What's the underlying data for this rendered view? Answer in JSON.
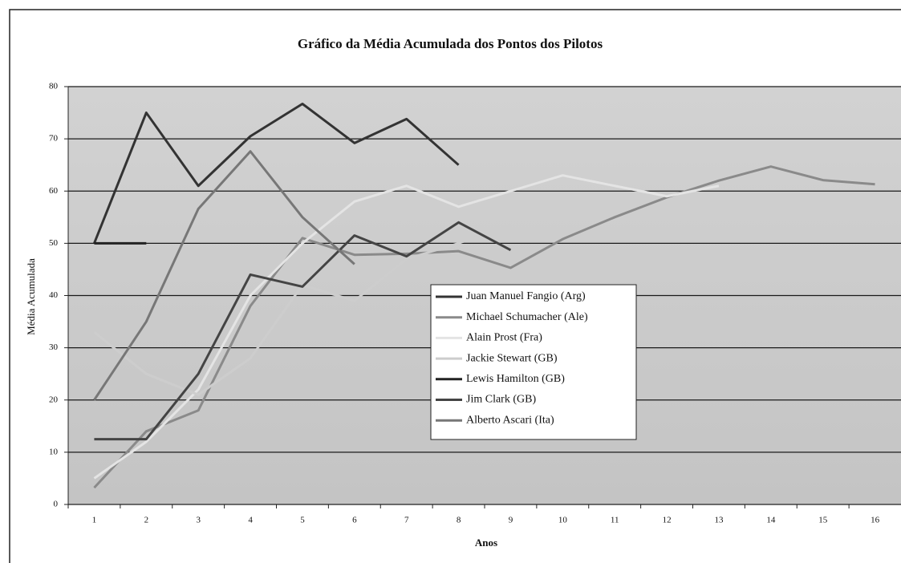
{
  "chart_data": {
    "type": "line",
    "title": "Gráfico da Média Acumulada dos Pontos dos Pilotos",
    "x_label": "Anos",
    "y_label": "Média Acumulada",
    "categories": [
      "1",
      "2",
      "3",
      "4",
      "5",
      "6",
      "7",
      "8",
      "9",
      "10",
      "11",
      "12",
      "13",
      "14",
      "15",
      "16"
    ],
    "ylim": [
      0,
      80
    ],
    "yticks": [
      0,
      10,
      20,
      30,
      40,
      50,
      60,
      70,
      80
    ],
    "grid": true,
    "series": [
      {
        "name": "Juan Manuel Fangio (Arg)",
        "color": "#333333",
        "values": [
          50,
          75,
          61,
          70.5,
          76.7,
          69.2,
          73.8,
          65,
          null,
          null,
          null,
          null,
          null,
          null,
          null,
          null
        ]
      },
      {
        "name": "Michael Schumacher (Ale)",
        "color": "#8a8a8a",
        "values": [
          3.2,
          14,
          18,
          38,
          51,
          47.8,
          48,
          48.5,
          45.3,
          50.8,
          55,
          58.8,
          62,
          64.7,
          62.1,
          61.3
        ]
      },
      {
        "name": "Alain Prost (Fra)",
        "color": "#e4e4e4",
        "values": [
          5,
          12,
          22,
          40,
          50,
          58,
          61,
          57,
          60,
          63,
          61,
          59,
          61,
          null,
          null,
          null
        ]
      },
      {
        "name": "Jackie Stewart (GB)",
        "color": "#cdcdcd",
        "values": [
          33,
          25,
          21,
          28,
          42,
          39,
          47,
          50,
          53.5,
          null,
          null,
          null,
          null,
          null,
          null,
          null
        ]
      },
      {
        "name": "Lewis Hamilton (GB)",
        "color": "#222222",
        "values": [
          50,
          50,
          null,
          null,
          null,
          null,
          null,
          null,
          null,
          null,
          null,
          null,
          null,
          null,
          null,
          null
        ]
      },
      {
        "name": "Jim Clark (GB)",
        "color": "#444444",
        "values": [
          12.5,
          12.5,
          25,
          44,
          41.7,
          51.5,
          47.5,
          54,
          48.7,
          null,
          null,
          null,
          null,
          null,
          null,
          null
        ]
      },
      {
        "name": "Alberto Ascari (Ita)",
        "color": "#777777",
        "values": [
          20,
          35,
          56.6,
          67.6,
          55,
          46,
          null,
          null,
          null,
          null,
          null,
          null,
          null,
          null,
          null,
          null
        ]
      }
    ]
  }
}
